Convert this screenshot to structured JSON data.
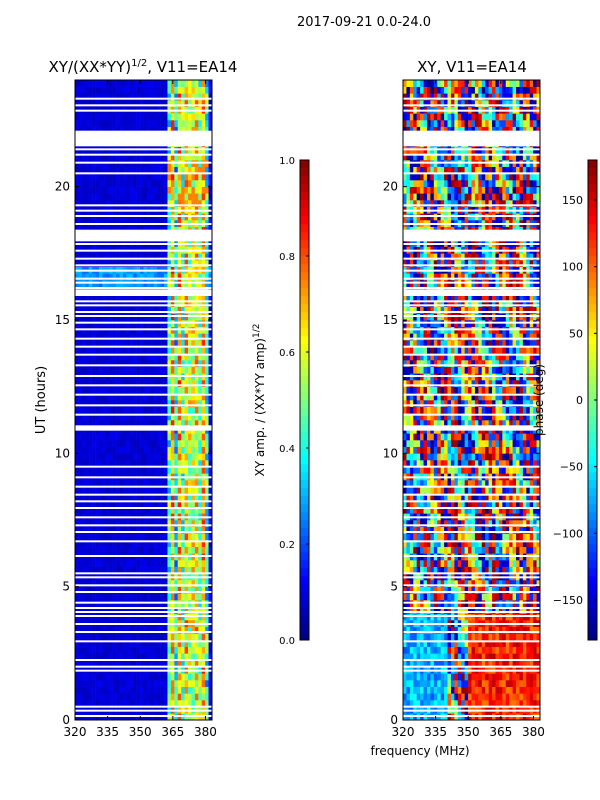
{
  "figure_title": "2017-09-21 0.0-24.0",
  "colors": {
    "jet": [
      "#00007f",
      "#0000ff",
      "#007fff",
      "#00ffff",
      "#7fff7f",
      "#ffff00",
      "#ff7f00",
      "#ff0000",
      "#7f0000"
    ],
    "frame": "#000000",
    "background": "#ffffff"
  },
  "chart_data": [
    {
      "type": "heatmap",
      "title_main": "XY/(XX*YY)",
      "title_sup": "1/2",
      "title_tail": ", V11=EA14",
      "xlabel": "",
      "ylabel": "UT (hours)",
      "xlim": [
        320,
        383
      ],
      "ylim": [
        0,
        24
      ],
      "xticks": [
        320,
        335,
        350,
        365,
        380
      ],
      "yticks": [
        0,
        5,
        10,
        15,
        20
      ],
      "colorbar": {
        "label_main": "XY amp. / (XX*YY amp)",
        "label_sup": "1/2",
        "range": [
          0.0,
          1.0
        ],
        "ticks": [
          "0.0",
          "0.2",
          "0.4",
          "0.6",
          "0.8",
          "1.0"
        ],
        "tick_values": [
          0.0,
          0.2,
          0.4,
          0.6,
          0.8,
          1.0
        ]
      },
      "gaps_hours": [
        0.15,
        0.35,
        0.5,
        1.85,
        2.0,
        2.25,
        2.95,
        3.3,
        3.6,
        3.9,
        4.05,
        4.2,
        4.4,
        4.8,
        5.05,
        5.35,
        5.5,
        6.15,
        6.7,
        7.05,
        7.3,
        7.6,
        7.95,
        8.2,
        8.45,
        8.75,
        9.1,
        9.5,
        10.95,
        11.0,
        11.45,
        11.8,
        12.2,
        12.55,
        12.9,
        13.3,
        13.7,
        14.0,
        14.3,
        14.65,
        14.9,
        15.15,
        15.3,
        15.55,
        15.7,
        16.05,
        16.2,
        16.4,
        16.55,
        16.85,
        17.05,
        17.3,
        17.6,
        17.85,
        18.2,
        18.35,
        18.6,
        18.9,
        19.1,
        19.3,
        20.5,
        20.9,
        21.2,
        21.4,
        21.55,
        21.7,
        21.85,
        22.85,
        23.05,
        23.3
      ],
      "gap_bands_hours": [
        [
          10.85,
          11.05
        ],
        [
          21.55,
          22.1
        ],
        [
          17.95,
          18.35
        ],
        [
          15.9,
          16.15
        ]
      ]
    },
    {
      "type": "heatmap",
      "title_main": "XY, V11=EA14",
      "xlabel": "frequency (MHz)",
      "ylabel": "",
      "xlim": [
        320,
        383
      ],
      "ylim": [
        0,
        24
      ],
      "xticks": [
        320,
        335,
        350,
        365,
        380
      ],
      "yticks": [
        0,
        5,
        10,
        15,
        20
      ],
      "colorbar": {
        "label_main": "phase (deg)",
        "range": [
          -180,
          180
        ],
        "ticks": [
          "−150",
          "−100",
          "−50",
          "0",
          "50",
          "100",
          "150"
        ],
        "tick_values": [
          -150,
          -100,
          -50,
          0,
          50,
          100,
          150
        ]
      },
      "gaps_hours": [
        0.15,
        0.35,
        0.5,
        1.85,
        2.0,
        2.25,
        2.95,
        3.3,
        3.6,
        3.9,
        4.05,
        4.2,
        4.4,
        4.8,
        5.05,
        5.35,
        5.5,
        6.15,
        6.7,
        7.05,
        7.3,
        7.6,
        7.95,
        8.2,
        8.45,
        8.75,
        9.1,
        9.5,
        10.95,
        11.0,
        11.45,
        11.8,
        12.2,
        12.55,
        12.9,
        13.3,
        13.7,
        14.0,
        14.3,
        14.65,
        14.9,
        15.15,
        15.3,
        15.55,
        15.7,
        16.05,
        16.2,
        16.4,
        16.55,
        16.85,
        17.05,
        17.3,
        17.6,
        17.85,
        18.2,
        18.35,
        18.6,
        18.9,
        19.1,
        19.3,
        20.5,
        20.9,
        21.2,
        21.4,
        21.55,
        21.7,
        21.85,
        22.85,
        23.05,
        23.3
      ],
      "gap_bands_hours": [
        [
          10.85,
          11.05
        ],
        [
          21.55,
          22.1
        ],
        [
          17.95,
          18.35
        ],
        [
          15.9,
          16.15
        ]
      ]
    }
  ]
}
